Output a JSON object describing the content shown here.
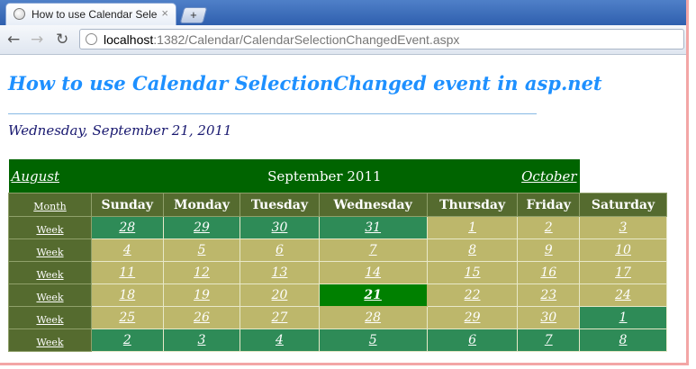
{
  "browser": {
    "tab_title": "How to use Calendar Select",
    "tab_close": "×",
    "new_tab": "+",
    "url_host": "localhost",
    "url_rest": ":1382/Calendar/CalendarSelectionChangedEvent.aspx"
  },
  "page": {
    "heading": "How to use Calendar SelectionChanged event in asp.net",
    "selected_date": "Wednesday, September 21, 2011"
  },
  "calendar": {
    "prev_month": "August",
    "title": "September 2011",
    "next_month": "October",
    "month_selector": "Month",
    "week_selector": "Week",
    "day_names": [
      "Sunday",
      "Monday",
      "Tuesday",
      "Wednesday",
      "Thursday",
      "Friday",
      "Saturday"
    ],
    "weeks": [
      [
        {
          "d": "28",
          "t": "other"
        },
        {
          "d": "29",
          "t": "other"
        },
        {
          "d": "30",
          "t": "other"
        },
        {
          "d": "31",
          "t": "other"
        },
        {
          "d": "1",
          "t": "cur"
        },
        {
          "d": "2",
          "t": "cur"
        },
        {
          "d": "3",
          "t": "cur"
        }
      ],
      [
        {
          "d": "4",
          "t": "cur"
        },
        {
          "d": "5",
          "t": "cur"
        },
        {
          "d": "6",
          "t": "cur"
        },
        {
          "d": "7",
          "t": "cur"
        },
        {
          "d": "8",
          "t": "cur"
        },
        {
          "d": "9",
          "t": "cur"
        },
        {
          "d": "10",
          "t": "cur"
        }
      ],
      [
        {
          "d": "11",
          "t": "cur"
        },
        {
          "d": "12",
          "t": "cur"
        },
        {
          "d": "13",
          "t": "cur"
        },
        {
          "d": "14",
          "t": "cur"
        },
        {
          "d": "15",
          "t": "cur"
        },
        {
          "d": "16",
          "t": "cur"
        },
        {
          "d": "17",
          "t": "cur"
        }
      ],
      [
        {
          "d": "18",
          "t": "cur"
        },
        {
          "d": "19",
          "t": "cur"
        },
        {
          "d": "20",
          "t": "cur"
        },
        {
          "d": "21",
          "t": "sel"
        },
        {
          "d": "22",
          "t": "cur"
        },
        {
          "d": "23",
          "t": "cur"
        },
        {
          "d": "24",
          "t": "cur"
        }
      ],
      [
        {
          "d": "25",
          "t": "cur"
        },
        {
          "d": "26",
          "t": "cur"
        },
        {
          "d": "27",
          "t": "cur"
        },
        {
          "d": "28",
          "t": "cur"
        },
        {
          "d": "29",
          "t": "cur"
        },
        {
          "d": "30",
          "t": "cur"
        },
        {
          "d": "1",
          "t": "other"
        }
      ],
      [
        {
          "d": "2",
          "t": "other"
        },
        {
          "d": "3",
          "t": "other"
        },
        {
          "d": "4",
          "t": "other"
        },
        {
          "d": "5",
          "t": "other"
        },
        {
          "d": "6",
          "t": "other"
        },
        {
          "d": "7",
          "t": "other"
        },
        {
          "d": "8",
          "t": "other"
        }
      ]
    ]
  }
}
